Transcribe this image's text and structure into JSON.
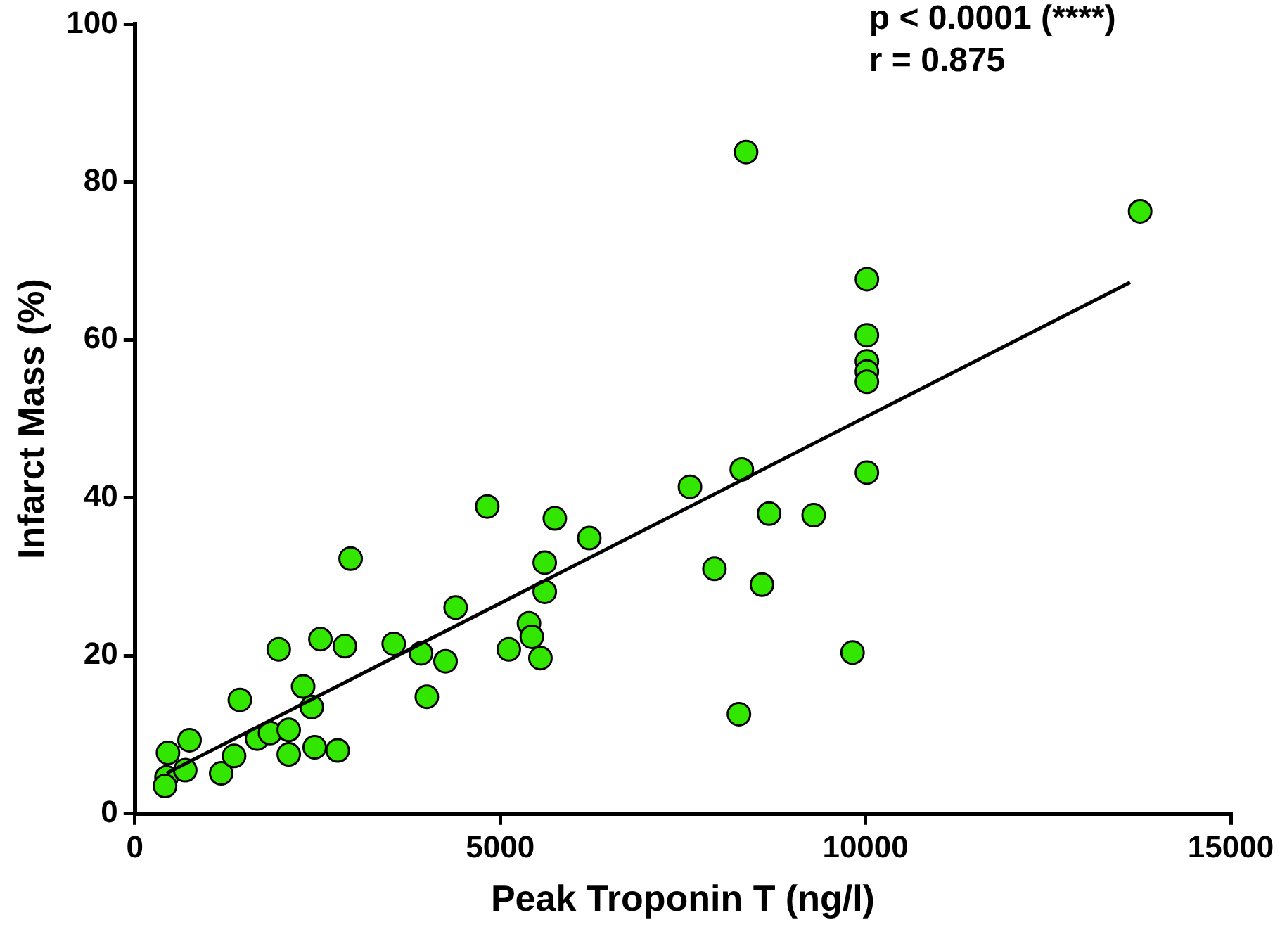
{
  "chart_data": {
    "type": "scatter",
    "xlabel": "Peak Troponin T (ng/l)",
    "ylabel": "Infarct Mass (%)",
    "xlim": [
      0,
      15000
    ],
    "xticks": [
      0,
      5000,
      10000,
      15000
    ],
    "ylim": [
      0,
      100
    ],
    "yticks": [
      0,
      20,
      40,
      60,
      80,
      100
    ],
    "grid": false,
    "legend": false,
    "marker": "circle",
    "annotations": [
      "p < 0.0001 (****)",
      "r = 0.875"
    ],
    "series": [
      {
        "color": "#33e600",
        "x": [
          433,
          413,
          453,
          689,
          748,
          1181,
          1358,
          1437,
          1673,
          1850,
          1969,
          2106,
          2106,
          2303,
          2421,
          2461,
          2539,
          2776,
          2874,
          2953,
          3543,
          3917,
          3996,
          4252,
          4390,
          4823,
          5118,
          5394,
          5433,
          5551,
          5610,
          5610,
          5748,
          6220,
          7598,
          7933,
          8268,
          8307,
          8366,
          8583,
          8681,
          9291,
          9823,
          10020,
          10020,
          10020,
          10020,
          10020,
          10020,
          13760
        ],
        "values": [
          4.6,
          3.5,
          7.7,
          5.5,
          9.3,
          5.1,
          7.3,
          14.4,
          9.5,
          10.2,
          20.8,
          10.6,
          7.5,
          16.1,
          13.5,
          8.4,
          22.1,
          8.0,
          21.2,
          32.3,
          21.5,
          20.3,
          14.8,
          19.3,
          26.1,
          38.9,
          20.8,
          24.1,
          22.4,
          19.7,
          28.1,
          31.8,
          37.4,
          34.9,
          41.4,
          31.0,
          12.6,
          43.6,
          83.8,
          29.0,
          38.0,
          37.8,
          20.4,
          67.7,
          60.6,
          57.3,
          56.0,
          54.7,
          43.2,
          76.3
        ]
      },
      {
        "type": "line",
        "color": "#000000",
        "line_style": "solid",
        "marker": "none",
        "x": [
          433,
          13622
        ],
        "values": [
          5.1,
          67.3
        ]
      }
    ]
  }
}
